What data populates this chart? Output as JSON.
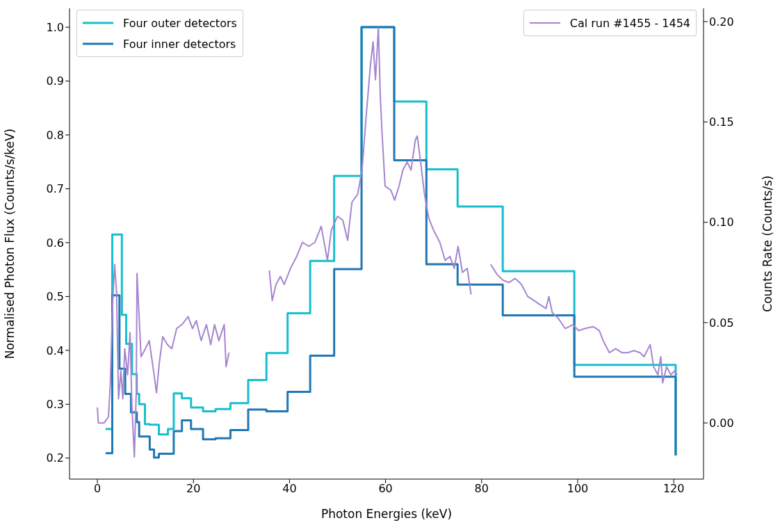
{
  "chart_data": {
    "type": "line",
    "xlabel": "Photon Energies (keV)",
    "ylabel": "Normalised Photon Flux (Counts/s/keV)",
    "y2label": "Counts Rate (Counts/s)",
    "xlim": [
      -5.8,
      126.2
    ],
    "xticks": [
      0,
      20,
      40,
      60,
      80,
      100,
      120
    ],
    "ylim": [
      0.161,
      1.035
    ],
    "yticks": [
      0.2,
      0.3,
      0.4,
      0.5,
      0.6,
      0.7,
      0.8,
      0.9,
      {
        "value": 1,
        "label": "1.0"
      }
    ],
    "y2lim": [
      -0.028,
      0.2066
    ],
    "y2ticks": [
      {
        "value": 0,
        "label": "0.00"
      },
      {
        "value": 0.05,
        "label": "0.05"
      },
      {
        "value": 0.1,
        "label": "0.10"
      },
      {
        "value": 0.15,
        "label": "0.15"
      },
      {
        "value": 0.2,
        "label": "0.20"
      }
    ],
    "legend": "top",
    "marker": "none",
    "series": [
      {
        "name": "Four outer detectors",
        "type": "step",
        "color": "#17becf",
        "x": [
          1.7,
          3.1,
          5.1,
          6.0,
          7.2,
          8.2,
          8.7,
          9.9,
          10.9,
          12.8,
          14.7,
          15.9,
          17.6,
          19.5,
          22.0,
          24.6,
          27.7,
          31.4,
          35.2,
          39.6,
          44.3,
          49.3,
          55.0,
          61.8,
          68.5,
          75.0,
          84.4,
          99.3,
          120.4,
          120.4
        ],
        "values": [
          0.254,
          0.615,
          0.466,
          0.412,
          0.356,
          0.319,
          0.3,
          0.263,
          0.262,
          0.244,
          0.254,
          0.32,
          0.311,
          0.294,
          0.287,
          0.291,
          0.302,
          0.345,
          0.395,
          0.469,
          0.566,
          0.724,
          1.0,
          0.862,
          0.736,
          0.667,
          0.547,
          0.373,
          0.373,
          0.205
        ]
      },
      {
        "name": "Four inner detectors",
        "type": "step",
        "color": "#1f77b4",
        "x": [
          1.7,
          3.1,
          4.6,
          5.8,
          7.0,
          8.2,
          8.7,
          10.9,
          11.8,
          12.8,
          15.9,
          17.6,
          19.5,
          22.0,
          24.6,
          27.7,
          31.4,
          35.2,
          39.6,
          44.3,
          49.3,
          55.0,
          61.8,
          68.5,
          75.0,
          84.4,
          99.3,
          120.4,
          120.4
        ],
        "values": [
          0.209,
          0.502,
          0.366,
          0.319,
          0.285,
          0.267,
          0.24,
          0.216,
          0.201,
          0.208,
          0.25,
          0.27,
          0.254,
          0.235,
          0.237,
          0.252,
          0.29,
          0.287,
          0.323,
          0.39,
          0.551,
          1.0,
          0.753,
          0.56,
          0.522,
          0.465,
          0.351,
          0.351,
          0.205
        ]
      },
      {
        "name": "Cal run #1455 - 1454",
        "axis": "y2",
        "color": "#a585cf",
        "x": [
          0,
          0.2,
          1.4,
          2.3,
          2.7,
          3.2,
          3.6,
          4.0,
          4.4,
          4.9,
          5.3,
          5.7,
          6.3,
          6.8,
          7.2,
          7.7,
          8.1,
          8.25,
          9.1,
          10.0,
          10.8,
          11.7,
          12.3,
          12.9,
          13.6,
          14.6,
          15.5,
          16.5,
          17.6,
          18.9,
          19.8,
          20.6,
          21.6,
          22.7,
          23.6,
          24.4,
          25.3,
          26.4,
          26.8,
          27.4,
          31.5,
          35.8,
          36.4,
          37.2,
          38.1,
          38.9,
          40.2,
          41.5,
          42.7,
          44.0,
          45.3,
          46.6,
          47.9,
          48.7,
          50.0,
          51.1,
          52.1,
          53.0,
          54.2,
          55.1,
          55.9,
          56.8,
          57.4,
          57.9,
          58.5,
          58.9,
          59.3,
          59.9,
          61.1,
          61.9,
          62.8,
          63.6,
          64.5,
          65.3,
          66.2,
          66.6,
          67.3,
          68.1,
          69.0,
          70.0,
          71.3,
          72.4,
          73.4,
          74.3,
          75.1,
          76.0,
          77.0,
          77.8,
          80.0,
          81.9,
          83.2,
          84.5,
          85.7,
          87.0,
          88.3,
          89.6,
          90.9,
          92.1,
          93.4,
          94.0,
          94.7,
          96.0,
          97.4,
          99.0,
          100.2,
          101.5,
          103.2,
          104.5,
          105.3,
          106.6,
          107.9,
          109.2,
          110.4,
          111.7,
          113.0,
          113.8,
          115.1,
          115.8,
          116.7,
          117.3,
          117.7,
          118.5,
          119.4,
          120.2,
          120.7
        ],
        "values": [
          0.0077,
          0,
          0,
          0.003,
          0.02,
          0.061,
          0.079,
          0.065,
          0.012,
          0.026,
          0.012,
          0.037,
          0.024,
          0.045,
          0.008,
          -0.017,
          0.016,
          0.0745,
          0.033,
          0.037,
          0.041,
          0.026,
          0.015,
          0.03,
          0.043,
          0.039,
          0.037,
          0.047,
          0.049,
          0.053,
          0.047,
          0.051,
          0.041,
          0.049,
          0.039,
          0.049,
          0.041,
          0.049,
          0.028,
          0.035,
          null,
          0.076,
          0.061,
          0.069,
          0.073,
          0.069,
          0.077,
          0.083,
          0.09,
          0.088,
          0.09,
          0.098,
          0.081,
          0.096,
          0.103,
          0.101,
          0.091,
          0.11,
          0.114,
          0.126,
          0.151,
          0.177,
          0.19,
          0.171,
          0.197,
          0.163,
          0.143,
          0.118,
          0.116,
          0.111,
          0.118,
          0.126,
          0.13,
          0.126,
          0.141,
          0.143,
          0.13,
          0.114,
          0.102,
          0.096,
          0.09,
          0.081,
          0.083,
          0.077,
          0.088,
          0.075,
          0.077,
          0.064,
          null,
          0.079,
          0.074,
          0.071,
          0.07,
          0.072,
          0.069,
          0.063,
          0.061,
          0.059,
          0.057,
          0.063,
          0.055,
          0.052,
          0.047,
          0.049,
          0.046,
          0.047,
          0.048,
          0.046,
          0.041,
          0.035,
          0.037,
          0.035,
          0.035,
          0.036,
          0.035,
          0.033,
          0.039,
          0.028,
          0.024,
          0.033,
          0.02,
          0.028,
          0.024,
          0.026,
          0.024
        ]
      }
    ]
  }
}
